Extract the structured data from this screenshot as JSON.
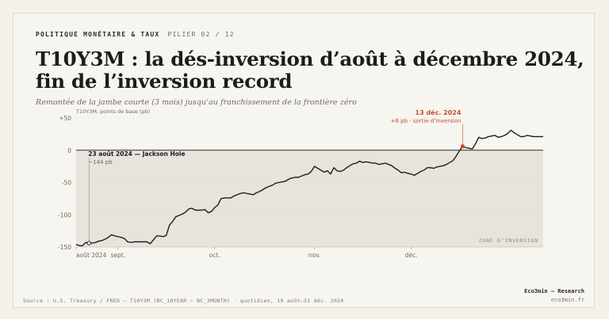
{
  "header": {
    "kicker": "POLITIQUE MONÉTAIRE & TAUX",
    "pillar": "PILIER 02 / 12",
    "title": "T10Y3M : la dés-inversion d’août à décembre 2024, fin de l’inversion record",
    "subtitle": "Remontée de la jambe courte (3 mois) jusqu’au franchissement de la frontière zéro"
  },
  "chart_data": {
    "type": "line",
    "ylabel": "T10Y3M, points de base (pb)",
    "ylim": [
      -150,
      50
    ],
    "yticks": [
      50,
      0,
      -50,
      -100,
      -150
    ],
    "ytick_labels": [
      "+50",
      "0",
      "-50",
      "-100",
      "-150"
    ],
    "xticks": [
      {
        "day": 0,
        "label": "août 2024"
      },
      {
        "day": 13,
        "label": "sept."
      },
      {
        "day": 43,
        "label": "oct."
      },
      {
        "day": 74,
        "label": "nov."
      },
      {
        "day": 104,
        "label": "déc."
      }
    ],
    "x_start_date": "2024-08-19",
    "x_end_date": "2024-12-31",
    "region_label": "ZONE D’INVERSION",
    "series": [
      {
        "name": "T10Y3M",
        "color": "#1d1d1d",
        "points": [
          [
            0,
            -146
          ],
          [
            1,
            -148
          ],
          [
            2,
            -148
          ],
          [
            3,
            -143
          ],
          [
            4,
            -144
          ],
          [
            5,
            -144
          ],
          [
            6,
            -143
          ],
          [
            7,
            -141
          ],
          [
            8,
            -140
          ],
          [
            9,
            -138
          ],
          [
            10,
            -135
          ],
          [
            11,
            -131
          ],
          [
            12,
            -133
          ],
          [
            13,
            -134
          ],
          [
            14,
            -135
          ],
          [
            15,
            -137
          ],
          [
            16,
            -142
          ],
          [
            17,
            -143
          ],
          [
            18,
            -142
          ],
          [
            19,
            -142
          ],
          [
            20,
            -142
          ],
          [
            21,
            -142
          ],
          [
            22,
            -142
          ],
          [
            23,
            -145
          ],
          [
            24,
            -139
          ],
          [
            25,
            -133
          ],
          [
            26,
            -133
          ],
          [
            27,
            -134
          ],
          [
            28,
            -132
          ],
          [
            29,
            -116
          ],
          [
            30,
            -110
          ],
          [
            31,
            -103
          ],
          [
            32,
            -101
          ],
          [
            33,
            -99
          ],
          [
            34,
            -96
          ],
          [
            35,
            -91
          ],
          [
            36,
            -90
          ],
          [
            37,
            -93
          ],
          [
            38,
            -93
          ],
          [
            39,
            -93
          ],
          [
            40,
            -92
          ],
          [
            41,
            -97
          ],
          [
            42,
            -95
          ],
          [
            43,
            -89
          ],
          [
            44,
            -85
          ],
          [
            45,
            -75
          ],
          [
            46,
            -74
          ],
          [
            47,
            -74
          ],
          [
            48,
            -74
          ],
          [
            49,
            -71
          ],
          [
            50,
            -69
          ],
          [
            51,
            -67
          ],
          [
            52,
            -66
          ],
          [
            53,
            -67
          ],
          [
            54,
            -68
          ],
          [
            55,
            -69
          ],
          [
            56,
            -66
          ],
          [
            57,
            -64
          ],
          [
            58,
            -61
          ],
          [
            59,
            -58
          ],
          [
            60,
            -56
          ],
          [
            61,
            -54
          ],
          [
            62,
            -51
          ],
          [
            63,
            -50
          ],
          [
            64,
            -49
          ],
          [
            65,
            -48
          ],
          [
            66,
            -45
          ],
          [
            67,
            -43
          ],
          [
            68,
            -42
          ],
          [
            69,
            -42
          ],
          [
            70,
            -40
          ],
          [
            71,
            -38
          ],
          [
            72,
            -37
          ],
          [
            73,
            -33
          ],
          [
            74,
            -25
          ],
          [
            75,
            -28
          ],
          [
            76,
            -31
          ],
          [
            77,
            -34
          ],
          [
            78,
            -32
          ],
          [
            79,
            -37
          ],
          [
            80,
            -27
          ],
          [
            81,
            -32
          ],
          [
            82,
            -33
          ],
          [
            83,
            -31
          ],
          [
            84,
            -27
          ],
          [
            85,
            -24
          ],
          [
            86,
            -21
          ],
          [
            87,
            -20
          ],
          [
            88,
            -17
          ],
          [
            89,
            -19
          ],
          [
            90,
            -18
          ],
          [
            91,
            -19
          ],
          [
            92,
            -20
          ],
          [
            93,
            -20
          ],
          [
            94,
            -22
          ],
          [
            95,
            -21
          ],
          [
            96,
            -20
          ],
          [
            97,
            -22
          ],
          [
            98,
            -24
          ],
          [
            99,
            -28
          ],
          [
            100,
            -31
          ],
          [
            101,
            -35
          ],
          [
            102,
            -34
          ],
          [
            103,
            -36
          ],
          [
            104,
            -37
          ],
          [
            105,
            -39
          ],
          [
            106,
            -36
          ],
          [
            107,
            -33
          ],
          [
            108,
            -31
          ],
          [
            109,
            -27
          ],
          [
            110,
            -27
          ],
          [
            111,
            -28
          ],
          [
            112,
            -26
          ],
          [
            113,
            -25
          ],
          [
            114,
            -24
          ],
          [
            115,
            -22
          ],
          [
            116,
            -19
          ],
          [
            117,
            -16
          ],
          [
            118,
            -9
          ],
          [
            119,
            -1
          ],
          [
            120,
            6
          ],
          [
            121,
            4
          ],
          [
            122,
            3
          ],
          [
            123,
            2
          ],
          [
            124,
            10
          ],
          [
            125,
            20
          ],
          [
            126,
            18
          ],
          [
            127,
            19
          ],
          [
            128,
            21
          ],
          [
            129,
            22
          ],
          [
            130,
            23
          ],
          [
            131,
            20
          ],
          [
            132,
            21
          ],
          [
            133,
            23
          ],
          [
            134,
            26
          ],
          [
            135,
            31
          ],
          [
            136,
            27
          ],
          [
            137,
            24
          ],
          [
            138,
            21
          ],
          [
            139,
            21
          ],
          [
            140,
            23
          ],
          [
            141,
            22
          ],
          [
            142,
            21
          ],
          [
            143,
            21
          ],
          [
            144,
            21
          ],
          [
            145,
            21
          ]
        ]
      }
    ],
    "annotations": [
      {
        "day": 4,
        "value": -144,
        "title": "23 août 2024 — Jackson Hole",
        "detail": "−144 pb",
        "color": "#1d1d1d"
      },
      {
        "day": 120,
        "value": 6,
        "title": "13 déc. 2024",
        "detail": "+6 pb · sortie d’inversion",
        "color": "#c4502c"
      }
    ]
  },
  "footer": {
    "source": "Source : U.S. Treasury / FRED — T10Y3M (BC_10YEAR − BC_3MONTH) · quotidien, 19 août–31 déc. 2024",
    "brand": "Eco3min — Research",
    "site": "eco3min.fr"
  }
}
